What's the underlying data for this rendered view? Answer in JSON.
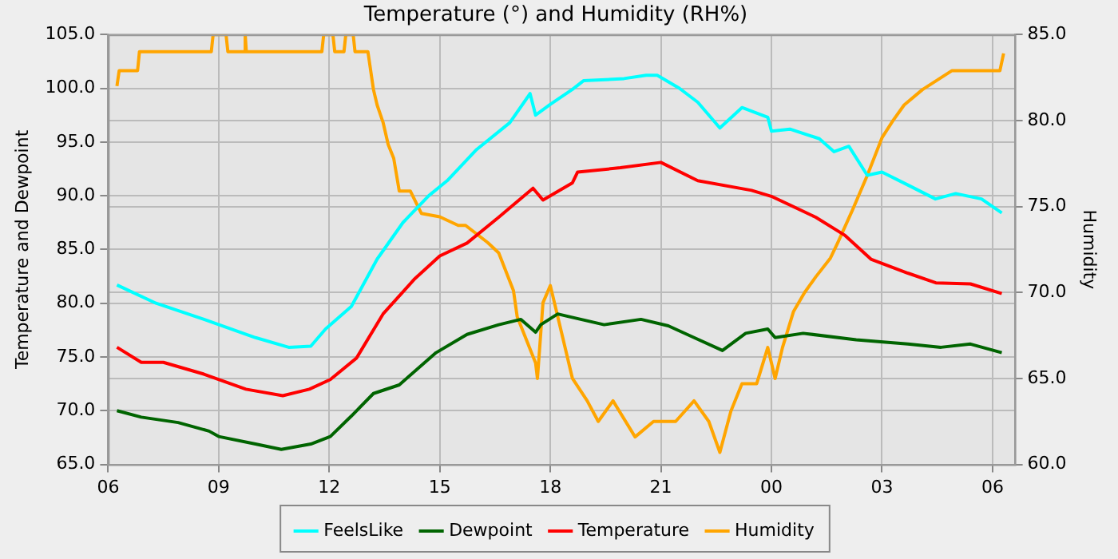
{
  "chart_data": {
    "type": "line",
    "title": "Temperature (°) and Humidity (RH%)",
    "ylabel": "Temperature and Dewpoint",
    "y2label": "Humidity",
    "grid": true,
    "legend": "bottom",
    "marker": "none",
    "line_style": "solid",
    "xlim": [
      6,
      30.6
    ],
    "xticks": [
      {
        "value": 6,
        "label": "06"
      },
      {
        "value": 9,
        "label": "09"
      },
      {
        "value": 12,
        "label": "12"
      },
      {
        "value": 15,
        "label": "15"
      },
      {
        "value": 18,
        "label": "18"
      },
      {
        "value": 21,
        "label": "21"
      },
      {
        "value": 24,
        "label": "00"
      },
      {
        "value": 27,
        "label": "03"
      },
      {
        "value": 30,
        "label": "06"
      }
    ],
    "ylim": [
      65,
      105
    ],
    "yticks": [
      {
        "value": 65,
        "label": "65.0"
      },
      {
        "value": 70,
        "label": "70.0"
      },
      {
        "value": 75,
        "label": "75.0"
      },
      {
        "value": 80,
        "label": "80.0"
      },
      {
        "value": 85,
        "label": "85.0"
      },
      {
        "value": 90,
        "label": "90.0"
      },
      {
        "value": 95,
        "label": "95.0"
      },
      {
        "value": 100,
        "label": "100.0"
      },
      {
        "value": 105,
        "label": "105.0"
      }
    ],
    "y2lim": [
      60,
      85
    ],
    "y2ticks": [
      {
        "value": 60,
        "label": "60.0"
      },
      {
        "value": 65,
        "label": "65.0"
      },
      {
        "value": 70,
        "label": "70.0"
      },
      {
        "value": 75,
        "label": "75.0"
      },
      {
        "value": 80,
        "label": "80.0"
      },
      {
        "value": 85,
        "label": "85.0"
      }
    ],
    "series": [
      {
        "name": "FeelsLike",
        "color": "#00ffff",
        "x": [
          6.24,
          7.3,
          8.6,
          10.0,
          10.9,
          11.5,
          11.9,
          12.6,
          13.3,
          14.0,
          14.7,
          15.2,
          16.0,
          16.9,
          17.45,
          17.6,
          18.0,
          18.6,
          18.9,
          19.5,
          20.0,
          20.6,
          20.9,
          21.5,
          22.0,
          22.6,
          23.2,
          23.9,
          24.0,
          24.5,
          25.3,
          25.7,
          26.1,
          26.6,
          27.0,
          27.7,
          28.45,
          29.0,
          29.7,
          30.25
        ],
        "values": [
          81.7,
          80.0,
          78.5,
          76.8,
          75.9,
          76.0,
          77.6,
          79.7,
          84.1,
          87.5,
          90.0,
          91.4,
          94.3,
          96.8,
          99.5,
          97.5,
          98.5,
          99.9,
          100.7,
          100.8,
          100.9,
          101.2,
          101.2,
          100.0,
          98.7,
          96.3,
          98.2,
          97.3,
          96.0,
          96.2,
          95.3,
          94.1,
          94.6,
          91.9,
          92.2,
          91.0,
          89.7,
          90.2,
          89.7,
          88.4
        ]
      },
      {
        "name": "Dewpoint",
        "color": "#006400",
        "x": [
          6.24,
          6.9,
          7.9,
          8.74,
          9.0,
          10.0,
          10.7,
          11.5,
          12.03,
          12.6,
          13.2,
          13.9,
          14.9,
          15.74,
          16.6,
          17.2,
          17.6,
          17.74,
          18.2,
          18.45,
          19.46,
          20.46,
          21.2,
          21.9,
          22.67,
          23.3,
          23.9,
          24.1,
          24.86,
          26.3,
          27.7,
          28.6,
          29.4,
          30.25
        ],
        "values": [
          70.0,
          69.4,
          68.9,
          68.1,
          67.6,
          66.9,
          66.4,
          66.9,
          67.6,
          69.5,
          71.6,
          72.4,
          75.4,
          77.1,
          78.0,
          78.5,
          77.3,
          78.0,
          79.0,
          78.8,
          78.0,
          78.5,
          77.9,
          76.8,
          75.6,
          77.2,
          77.6,
          76.8,
          77.2,
          76.6,
          76.2,
          75.9,
          76.2,
          75.4
        ]
      },
      {
        "name": "Temperature",
        "color": "#ff0000",
        "x": [
          6.24,
          6.9,
          7.5,
          8.6,
          9.74,
          10.74,
          11.46,
          12.03,
          12.74,
          13.46,
          14.3,
          15.0,
          15.74,
          16.6,
          17.53,
          17.8,
          18.6,
          18.74,
          19.9,
          21.0,
          22.0,
          23.46,
          24.03,
          25.2,
          26.0,
          26.7,
          27.7,
          28.46,
          29.4,
          30.25
        ],
        "values": [
          75.9,
          74.5,
          74.5,
          73.4,
          72.0,
          71.4,
          72.0,
          72.9,
          74.9,
          79.0,
          82.2,
          84.4,
          85.6,
          88.0,
          90.7,
          89.6,
          91.2,
          92.2,
          92.6,
          93.1,
          91.4,
          90.5,
          89.9,
          88.0,
          86.3,
          84.1,
          82.8,
          81.9,
          81.8,
          80.9
        ]
      },
      {
        "name": "Humidity",
        "color": "#ffa500",
        "axis": "y2",
        "x": [
          6.24,
          6.3,
          6.8,
          6.85,
          8.8,
          8.85,
          9.2,
          9.25,
          9.7,
          9.72,
          9.75,
          11.8,
          11.85,
          12.1,
          12.15,
          12.4,
          12.45,
          12.65,
          12.7,
          13.05,
          13.2,
          13.3,
          13.46,
          13.6,
          13.75,
          13.9,
          14.2,
          14.5,
          15.0,
          15.5,
          15.7,
          16.3,
          16.6,
          17.0,
          17.1,
          17.6,
          17.65,
          17.8,
          18.0,
          18.3,
          18.6,
          19.0,
          19.3,
          19.7,
          20.3,
          20.8,
          21.4,
          21.9,
          22.3,
          22.6,
          22.9,
          23.2,
          23.6,
          23.9,
          24.1,
          24.3,
          24.6,
          24.9,
          25.2,
          25.6,
          25.8,
          26.2,
          26.6,
          27.0,
          27.3,
          27.6,
          28.1,
          28.9,
          30.2,
          30.3
        ],
        "values": [
          82.0,
          82.9,
          82.9,
          84.0,
          84.0,
          85.0,
          85.0,
          84.0,
          84.0,
          85.0,
          84.0,
          84.0,
          85.0,
          85.0,
          84.0,
          84.0,
          85.0,
          85.0,
          84.0,
          84.0,
          81.8,
          80.9,
          79.9,
          78.6,
          77.8,
          75.9,
          75.9,
          74.6,
          74.4,
          73.9,
          73.9,
          72.9,
          72.3,
          70.1,
          68.6,
          65.9,
          65.0,
          69.4,
          70.4,
          67.7,
          65.0,
          63.7,
          62.5,
          63.7,
          61.6,
          62.5,
          62.5,
          63.7,
          62.5,
          60.7,
          63.1,
          64.7,
          64.7,
          66.8,
          65.0,
          66.8,
          68.9,
          70.0,
          70.9,
          72.0,
          72.9,
          74.8,
          76.8,
          79.0,
          80.0,
          80.9,
          81.8,
          82.9,
          82.9,
          83.9
        ]
      }
    ]
  }
}
